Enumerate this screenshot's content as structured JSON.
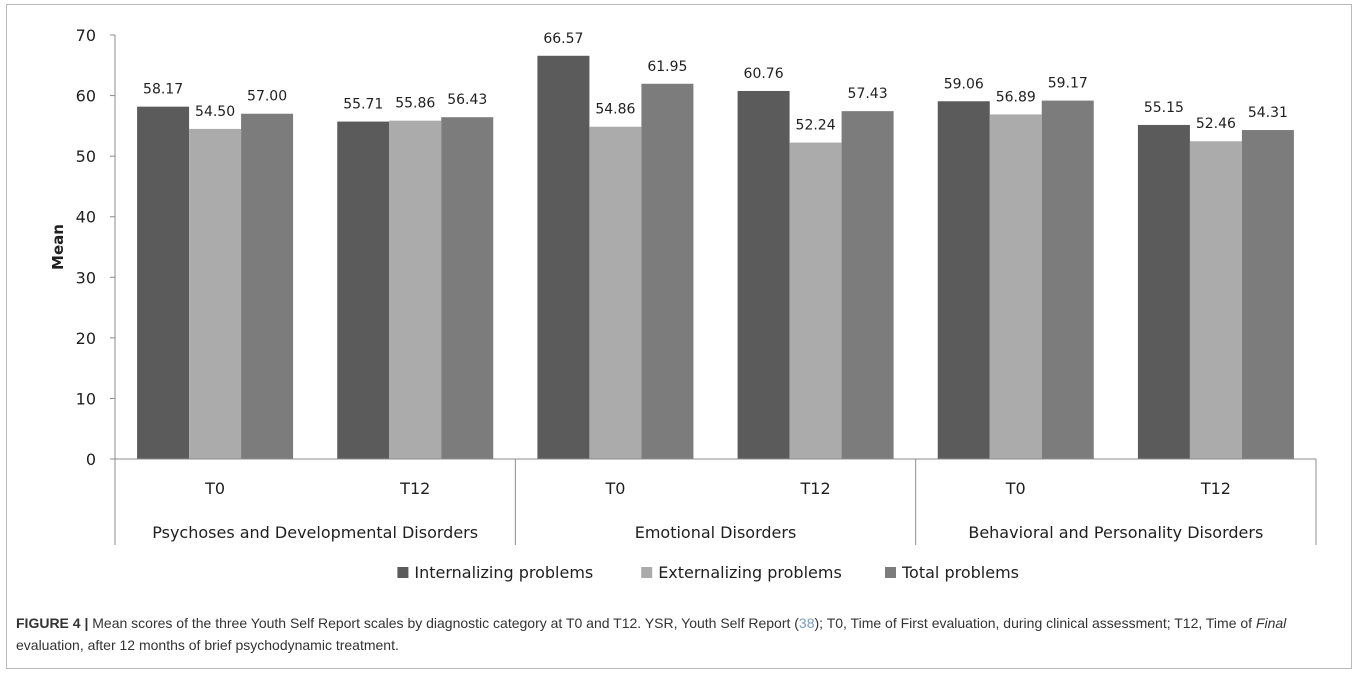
{
  "colors": {
    "internalizing": "#5b5b5b",
    "externalizing": "#ababab",
    "total": "#7c7c7c",
    "axis": "#8c8c8c",
    "caption_link": "#7a9cc2"
  },
  "chart_data": {
    "type": "bar",
    "ylabel": "Mean",
    "ylim": [
      0,
      70
    ],
    "yticks": [
      0,
      10,
      20,
      30,
      40,
      50,
      60,
      70
    ],
    "grid": false,
    "legend_position": "bottom",
    "groups": [
      {
        "label": "Psychoses and Developmental Disorders",
        "categories": [
          "T0",
          "T12"
        ]
      },
      {
        "label": "Emotional Disorders",
        "categories": [
          "T0",
          "T12"
        ]
      },
      {
        "label": "Behavioral and Personality Disorders",
        "categories": [
          "T0",
          "T12"
        ]
      }
    ],
    "series": [
      {
        "name": "Internalizing problems",
        "values": [
          58.17,
          55.71,
          66.57,
          60.76,
          59.06,
          55.15
        ],
        "labels": [
          "58.17",
          "55.71",
          "66.57",
          "60.76",
          "59.06",
          "55.15"
        ]
      },
      {
        "name": "Externalizing problems",
        "values": [
          54.5,
          55.86,
          54.86,
          52.24,
          56.89,
          52.46
        ],
        "labels": [
          "54.50",
          "55.86",
          "54.86",
          "52.24",
          "56.89",
          "52.46"
        ]
      },
      {
        "name": "Total problems",
        "values": [
          57.0,
          56.43,
          61.95,
          57.43,
          59.17,
          54.31
        ],
        "labels": [
          "57.00",
          "56.43",
          "61.95",
          "57.43",
          "59.17",
          "54.31"
        ]
      }
    ]
  },
  "caption": {
    "label": "FIGURE 4 |",
    "text_1": " Mean scores of the three Youth Self Report scales by diagnostic category at T0 and T12. YSR, Youth Self Report (",
    "ref": "38",
    "text_2": "); T0, Time of First evaluation, during clinical assessment; T12, Time of ",
    "italic": "Final",
    "text_3": " evaluation, after 12 months of brief psychodynamic treatment."
  }
}
